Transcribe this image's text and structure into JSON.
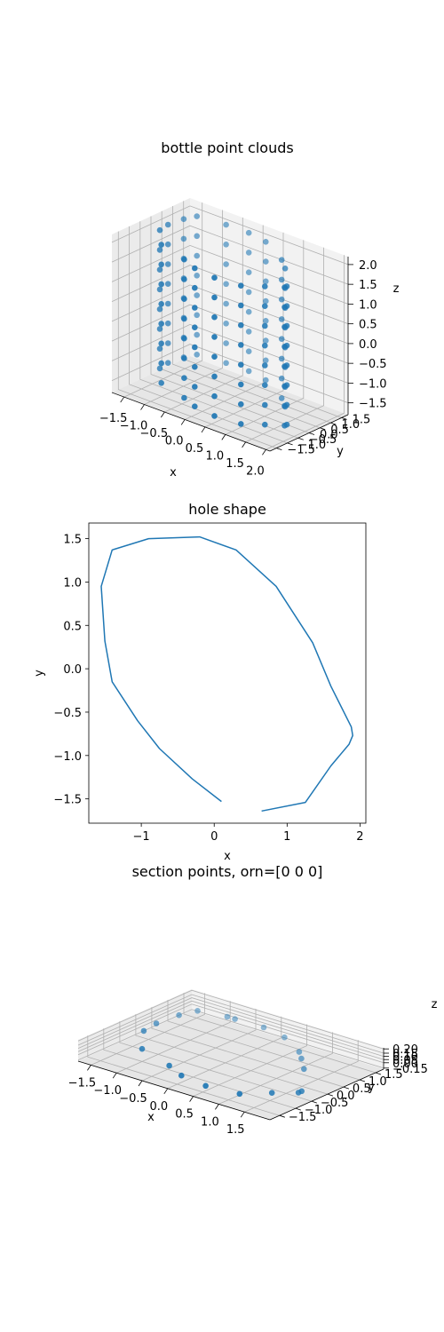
{
  "chart_data": [
    {
      "type": "scatter",
      "title": "bottle point clouds",
      "xlabel": "x",
      "ylabel": "y",
      "zlabel": "z",
      "xticks": [
        "−1.5",
        "−1.0",
        "−0.5",
        "0.0",
        "0.5",
        "1.0",
        "1.5",
        "2.0"
      ],
      "yticks": [
        "−1.5",
        "−1.0",
        "−0.5",
        "0.0",
        "0.5",
        "1.0",
        "1.5"
      ],
      "zticks": [
        "−1.5",
        "−1.0",
        "−0.5",
        "0.0",
        "0.5",
        "1.0",
        "1.5",
        "2.0"
      ],
      "xlim": [
        -1.8,
        2.1
      ],
      "ylim": [
        -1.8,
        1.8
      ],
      "zlim": [
        -1.8,
        2.2
      ],
      "grid": true,
      "color": "#1f77b4",
      "rings": {
        "z_levels": [
          -1.5,
          -1.0,
          -0.5,
          0.0,
          0.5,
          1.0,
          1.5,
          2.0
        ],
        "outline_x": [
          0.65,
          1.25,
          1.6,
          1.9,
          1.9,
          1.35,
          1.05,
          0.3,
          -0.2,
          -0.75,
          -1.4,
          -1.5,
          -1.55,
          -1.5,
          -1.05,
          -0.3,
          0.1
        ],
        "outline_y": [
          -1.65,
          -1.55,
          -1.1,
          -0.75,
          -0.65,
          0.3,
          0.7,
          1.37,
          1.52,
          1.5,
          1.37,
          0.95,
          0.32,
          -0.15,
          -0.92,
          -1.27,
          -1.53
        ]
      }
    },
    {
      "type": "line",
      "title": "hole shape",
      "xlabel": "x",
      "ylabel": "y",
      "xticks": [
        "−1",
        "0",
        "1",
        "2"
      ],
      "yticks": [
        "−1.5",
        "−1.0",
        "−0.5",
        "0.0",
        "0.5",
        "1.0",
        "1.5"
      ],
      "xlim": [
        -1.72,
        2.08
      ],
      "ylim": [
        -1.78,
        1.68
      ],
      "grid": false,
      "series": [
        {
          "x": [
            0.1,
            -0.3,
            -0.75,
            -1.05,
            -1.4,
            -1.5,
            -1.55,
            -1.4,
            -0.9,
            -0.2,
            0.3,
            0.85,
            1.05,
            1.35,
            1.6,
            1.88,
            1.9,
            1.85,
            1.6,
            1.25,
            0.65
          ],
          "y": [
            -1.53,
            -1.27,
            -0.92,
            -0.6,
            -0.15,
            0.32,
            0.95,
            1.37,
            1.5,
            1.52,
            1.37,
            0.95,
            0.69,
            0.3,
            -0.2,
            -0.67,
            -0.77,
            -0.87,
            -1.12,
            -1.54,
            -1.64
          ],
          "color": "#1f77b4"
        }
      ]
    },
    {
      "type": "scatter",
      "title": "section points, orn=[0 0 0]",
      "xlabel": "x",
      "ylabel": "y",
      "zlabel": "z",
      "xticks": [
        "−1.5",
        "−1.0",
        "−0.5",
        "0.0",
        "0.5",
        "1.0",
        "1.5"
      ],
      "yticks": [
        "−1.5",
        "−1.0",
        "−0.5",
        "0.0",
        "0.5",
        "1.0",
        "1.5"
      ],
      "zticks": [
        "−0.15",
        "0.00",
        "0.05",
        "0.10",
        "0.15",
        "0.20"
      ],
      "xlim": [
        -1.75,
        2.0
      ],
      "ylim": [
        -1.8,
        1.75
      ],
      "grid": true,
      "color": "#1f77b4",
      "points": {
        "x": [
          0.65,
          1.25,
          1.6,
          1.9,
          1.9,
          1.35,
          1.05,
          0.3,
          -0.2,
          -0.75,
          -1.4,
          -1.5,
          -1.55,
          -1.5,
          -1.05,
          -0.3,
          0.1,
          0.85,
          -0.9
        ],
        "y": [
          -1.65,
          -1.55,
          -1.1,
          -0.75,
          -0.65,
          0.3,
          0.7,
          1.37,
          1.52,
          1.5,
          1.37,
          0.95,
          0.32,
          -0.15,
          -0.92,
          -1.27,
          -1.53,
          0.95,
          1.5
        ]
      }
    }
  ]
}
